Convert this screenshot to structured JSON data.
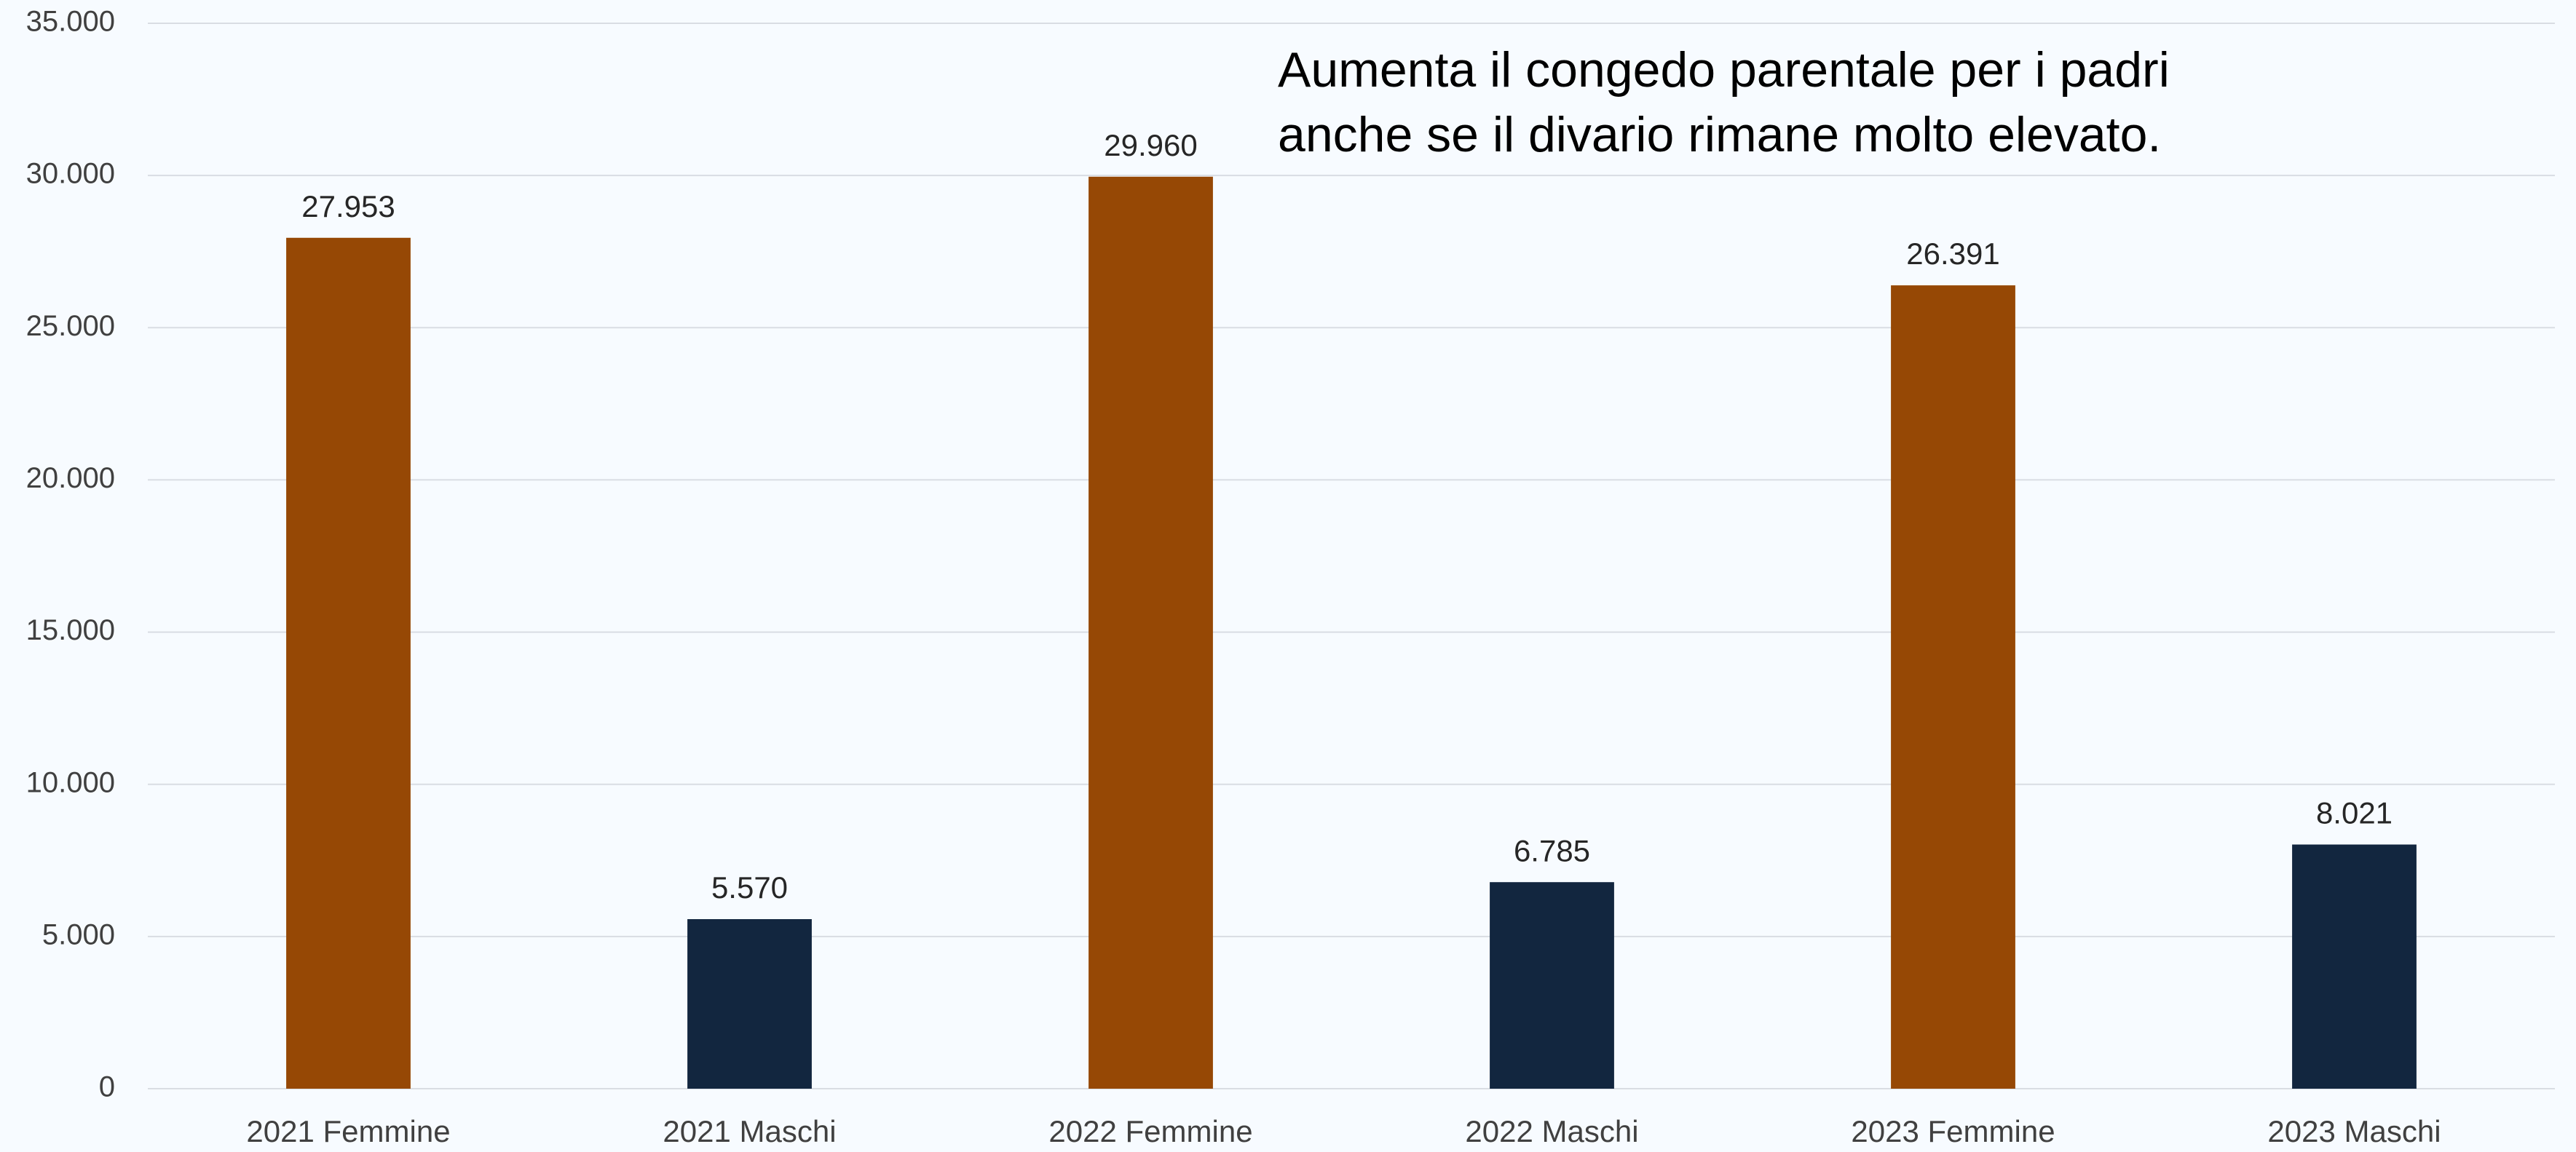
{
  "chart_data": {
    "type": "bar",
    "annotation": [
      "Aumenta il congedo parentale per i padri",
      "anche se il divario rimane molto elevato."
    ],
    "categories": [
      "2021 Femmine",
      "2021 Maschi",
      "2022 Femmine",
      "2022 Maschi",
      "2023 Femmine",
      "2023 Maschi"
    ],
    "values": [
      27953,
      5570,
      29960,
      6785,
      26391,
      8021
    ],
    "value_labels": [
      "27.953",
      "5.570",
      "29.960",
      "6.785",
      "26.391",
      "8.021"
    ],
    "colors": [
      "#964805",
      "#12263f",
      "#964805",
      "#12263f",
      "#964805",
      "#12263f"
    ],
    "ylim": [
      0,
      35000
    ],
    "yticks": [
      0,
      {
        "value": 5000,
        "label": "5.000"
      },
      {
        "value": 10000,
        "label": "10.000"
      },
      {
        "value": 15000,
        "label": "15.000"
      },
      {
        "value": 20000,
        "label": "20.000"
      },
      {
        "value": 25000,
        "label": "25.000"
      },
      {
        "value": 30000,
        "label": "30.000"
      },
      {
        "value": 35000,
        "label": "35.000"
      }
    ],
    "grid": true
  }
}
